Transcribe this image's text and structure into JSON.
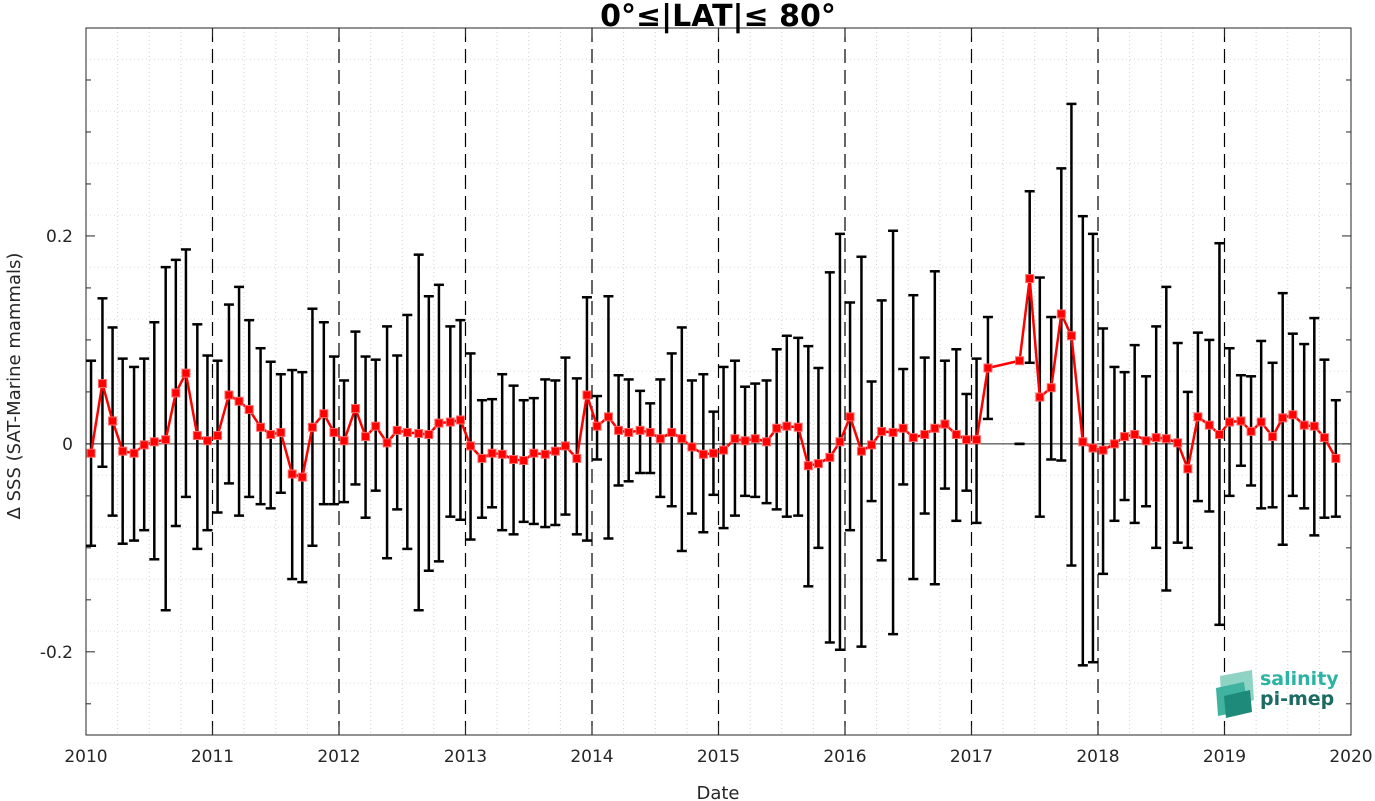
{
  "chart_data": {
    "type": "line",
    "title": "0°≤|LAT|≤ 80°",
    "xlabel": "Date",
    "ylabel": "Δ SSS (SAT-Marine mammals)",
    "xlim": [
      2010.0,
      2020.0
    ],
    "ylim": [
      -0.28,
      0.4
    ],
    "x_ticks": [
      "2010",
      "2011",
      "2012",
      "2013",
      "2014",
      "2015",
      "2016",
      "2017",
      "2018",
      "2019",
      "2020"
    ],
    "y_ticks": [
      "-0.2",
      "0",
      "0.2"
    ],
    "grid": "on",
    "series": [
      {
        "color": "#ff0000",
        "marker": "square",
        "x": [
          2010.04,
          2010.13,
          2010.21,
          2010.29,
          2010.38,
          2010.46,
          2010.54,
          2010.63,
          2010.71,
          2010.79,
          2010.88,
          2010.96,
          2011.04,
          2011.13,
          2011.21,
          2011.29,
          2011.38,
          2011.46,
          2011.54,
          2011.63,
          2011.71,
          2011.79,
          2011.88,
          2011.96,
          2012.04,
          2012.13,
          2012.21,
          2012.29,
          2012.38,
          2012.46,
          2012.54,
          2012.63,
          2012.71,
          2012.79,
          2012.88,
          2012.96,
          2013.04,
          2013.13,
          2013.21,
          2013.29,
          2013.38,
          2013.46,
          2013.54,
          2013.63,
          2013.71,
          2013.79,
          2013.88,
          2013.96,
          2014.04,
          2014.13,
          2014.21,
          2014.29,
          2014.38,
          2014.46,
          2014.54,
          2014.63,
          2014.71,
          2014.79,
          2014.88,
          2014.96,
          2015.04,
          2015.13,
          2015.21,
          2015.29,
          2015.38,
          2015.46,
          2015.54,
          2015.63,
          2015.71,
          2015.79,
          2015.88,
          2015.96,
          2016.04,
          2016.13,
          2016.21,
          2016.29,
          2016.38,
          2016.46,
          2016.54,
          2016.63,
          2016.71,
          2016.79,
          2016.88,
          2016.96,
          2017.04,
          2017.13,
          2017.38,
          2017.46,
          2017.54,
          2017.63,
          2017.71,
          2017.79,
          2017.88,
          2017.96,
          2018.04,
          2018.13,
          2018.21,
          2018.29,
          2018.38,
          2018.46,
          2018.54,
          2018.63,
          2018.71,
          2018.79,
          2018.88,
          2018.96,
          2019.04,
          2019.13,
          2019.21,
          2019.29,
          2019.38,
          2019.46,
          2019.54,
          2019.63,
          2019.71,
          2019.79,
          2019.88
        ],
        "y": [
          -0.009,
          0.058,
          0.022,
          -0.007,
          -0.009,
          -0.001,
          0.002,
          0.004,
          0.049,
          0.068,
          0.008,
          0.003,
          0.008,
          0.047,
          0.041,
          0.033,
          0.016,
          0.009,
          0.011,
          -0.029,
          -0.032,
          0.016,
          0.029,
          0.011,
          0.003,
          0.034,
          0.007,
          0.017,
          0.001,
          0.013,
          0.011,
          0.01,
          0.009,
          0.02,
          0.021,
          0.023,
          -0.002,
          -0.014,
          -0.009,
          -0.01,
          -0.015,
          -0.016,
          -0.009,
          -0.01,
          -0.007,
          -0.002,
          -0.014,
          0.047,
          0.017,
          0.026,
          0.013,
          0.011,
          0.013,
          0.011,
          0.005,
          0.011,
          0.005,
          -0.003,
          -0.01,
          -0.009,
          -0.006,
          0.005,
          0.003,
          0.005,
          0.002,
          0.015,
          0.017,
          0.016,
          -0.021,
          -0.019,
          -0.013,
          0.002,
          0.026,
          -0.007,
          -0.001,
          0.012,
          0.011,
          0.015,
          0.006,
          0.009,
          0.015,
          0.019,
          0.009,
          0.004,
          0.004,
          0.073,
          0.08,
          0.159,
          0.045,
          0.054,
          0.125,
          0.104,
          0.002,
          -0.004,
          -0.006,
          0.0,
          0.007,
          0.009,
          0.003,
          0.006,
          0.005,
          0.001,
          -0.024,
          0.026,
          0.018,
          0.009,
          0.021,
          0.022,
          0.012,
          0.021,
          0.007,
          0.025,
          0.028,
          0.018,
          0.017,
          0.006,
          -0.014
        ],
        "err_low": [
          -0.098,
          -0.022,
          -0.069,
          -0.096,
          -0.093,
          -0.083,
          -0.111,
          -0.16,
          -0.079,
          -0.051,
          -0.101,
          -0.083,
          -0.066,
          -0.038,
          -0.069,
          -0.051,
          -0.058,
          -0.062,
          -0.047,
          -0.13,
          -0.133,
          -0.098,
          -0.058,
          -0.058,
          -0.056,
          -0.039,
          -0.071,
          -0.045,
          -0.11,
          -0.063,
          -0.101,
          -0.16,
          -0.122,
          -0.113,
          -0.07,
          -0.073,
          -0.092,
          -0.071,
          -0.061,
          -0.083,
          -0.087,
          -0.075,
          -0.077,
          -0.08,
          -0.078,
          -0.068,
          -0.087,
          -0.093,
          -0.015,
          -0.091,
          -0.04,
          -0.036,
          -0.028,
          -0.028,
          -0.051,
          -0.06,
          -0.103,
          -0.067,
          -0.085,
          -0.049,
          -0.081,
          -0.069,
          -0.05,
          -0.051,
          -0.057,
          -0.063,
          -0.07,
          -0.069,
          -0.137,
          -0.1,
          -0.191,
          -0.198,
          -0.083,
          -0.195,
          -0.055,
          -0.112,
          -0.183,
          -0.039,
          -0.13,
          -0.067,
          -0.135,
          -0.043,
          -0.074,
          -0.045,
          -0.076,
          0.024,
          0.0,
          0.078,
          -0.07,
          -0.015,
          -0.016,
          -0.117,
          -0.213,
          -0.21,
          -0.125,
          -0.074,
          -0.054,
          -0.076,
          -0.06,
          -0.1,
          -0.141,
          -0.095,
          -0.1,
          -0.055,
          -0.065,
          -0.174,
          -0.05,
          -0.021,
          -0.04,
          -0.062,
          -0.061,
          -0.097,
          -0.05,
          -0.062,
          -0.088,
          -0.071,
          -0.07
        ],
        "err_high": [
          0.08,
          0.14,
          0.112,
          0.082,
          0.074,
          0.082,
          0.117,
          0.17,
          0.177,
          0.187,
          0.115,
          0.085,
          0.08,
          0.134,
          0.151,
          0.119,
          0.092,
          0.079,
          0.067,
          0.071,
          0.069,
          0.13,
          0.117,
          0.084,
          0.061,
          0.108,
          0.084,
          0.081,
          0.113,
          0.085,
          0.124,
          0.182,
          0.142,
          0.153,
          0.113,
          0.119,
          0.087,
          0.042,
          0.043,
          0.067,
          0.056,
          0.042,
          0.044,
          0.062,
          0.061,
          0.083,
          0.063,
          0.141,
          0.046,
          0.142,
          0.066,
          0.062,
          0.051,
          0.039,
          0.062,
          0.087,
          0.112,
          0.061,
          0.067,
          0.031,
          0.074,
          0.08,
          0.055,
          0.058,
          0.061,
          0.091,
          0.104,
          0.102,
          0.094,
          0.073,
          0.165,
          0.202,
          0.136,
          0.18,
          0.06,
          0.138,
          0.205,
          0.072,
          0.143,
          0.083,
          0.166,
          0.08,
          0.091,
          0.048,
          0.082,
          0.122,
          0.0,
          0.243,
          0.16,
          0.122,
          0.265,
          0.327,
          0.219,
          0.202,
          0.111,
          0.074,
          0.069,
          0.095,
          0.065,
          0.113,
          0.151,
          0.097,
          0.05,
          0.107,
          0.1,
          0.193,
          0.092,
          0.066,
          0.065,
          0.099,
          0.078,
          0.145,
          0.106,
          0.096,
          0.121,
          0.081,
          0.042
        ]
      }
    ]
  },
  "logo": {
    "line1": "salinity",
    "line2": "pi-mep",
    "color1": "#2bb3a3",
    "color2": "#1c6b62"
  }
}
